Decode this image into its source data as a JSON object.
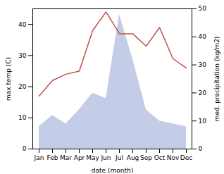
{
  "chart_data": {
    "type": "line",
    "categories": [
      "Jan",
      "Feb",
      "Mar",
      "Apr",
      "May",
      "Jun",
      "Jul",
      "Aug",
      "Sep",
      "Oct",
      "Nov",
      "Dec"
    ],
    "xlabel": "date (month)",
    "ylabel": "max temp (C)",
    "y2label": "med. precipitation (kg/m2)",
    "ylim": [
      0,
      45
    ],
    "yticks": [
      0,
      10,
      20,
      30,
      40
    ],
    "y2lim": [
      0,
      50
    ],
    "y2ticks": [
      0,
      10,
      20,
      30,
      40,
      50
    ],
    "grid": false,
    "series": [
      {
        "type": "area",
        "axis": "y2",
        "color": "#c5cce8",
        "values": [
          8,
          12,
          9,
          14,
          20,
          18,
          48,
          32,
          14,
          10,
          9,
          8
        ]
      },
      {
        "type": "line",
        "color": "#c0504d",
        "values": [
          17,
          22,
          24,
          25,
          38,
          44,
          37,
          37,
          33,
          39,
          29,
          26
        ]
      }
    ]
  }
}
